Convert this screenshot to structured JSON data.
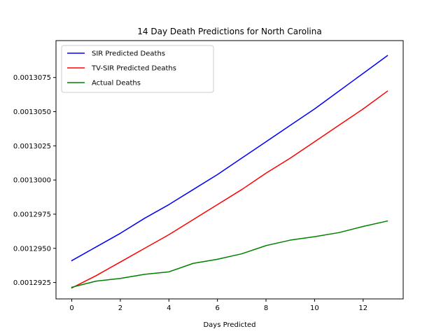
{
  "chart_data": {
    "type": "line",
    "title": "14 Day Death Predictions for North Carolina",
    "xlabel": "Days Predicted",
    "ylabel": "",
    "xlim": [
      -0.65,
      13.65
    ],
    "ylim": [
      0.0012913,
      0.0013102
    ],
    "x_ticks": [
      0,
      2,
      4,
      6,
      8,
      10,
      12
    ],
    "x_tick_labels": [
      "0",
      "2",
      "4",
      "6",
      "8",
      "10",
      "12"
    ],
    "y_ticks": [
      0.0012925,
      0.001295,
      0.0012975,
      0.0013,
      0.0013025,
      0.001305,
      0.0013075
    ],
    "y_tick_labels": [
      "0.0012925",
      "0.0012950",
      "0.0012975",
      "0.0013000",
      "0.0013025",
      "0.0013050",
      "0.0013075"
    ],
    "grid": false,
    "legend_position": "top-left",
    "x": [
      0,
      1,
      2,
      3,
      4,
      5,
      6,
      7,
      8,
      9,
      10,
      11,
      12,
      13
    ],
    "series": [
      {
        "name": "SIR Predicted Deaths",
        "color": "#0000ff",
        "values": [
          0.0012941,
          0.0012951,
          0.0012961,
          0.0012972,
          0.0012982,
          0.0012993,
          0.0013004,
          0.0013016,
          0.0013028,
          0.001304,
          0.0013052,
          0.0013065,
          0.0013078,
          0.0013091
        ]
      },
      {
        "name": "TV-SIR Predicted Deaths",
        "color": "#ff0000",
        "values": [
          0.0012921,
          0.001293,
          0.001294,
          0.001295,
          0.001296,
          0.0012971,
          0.0012982,
          0.0012993,
          0.0013005,
          0.0013016,
          0.0013028,
          0.001304,
          0.0013052,
          0.0013065
        ]
      },
      {
        "name": "Actual Deaths",
        "color": "#008000",
        "values": [
          0.00129215,
          0.0012926,
          0.0012928,
          0.0012931,
          0.00129328,
          0.0012939,
          0.0012942,
          0.0012946,
          0.0012952,
          0.0012956,
          0.00129585,
          0.00129615,
          0.0012966,
          0.001297
        ]
      }
    ]
  }
}
